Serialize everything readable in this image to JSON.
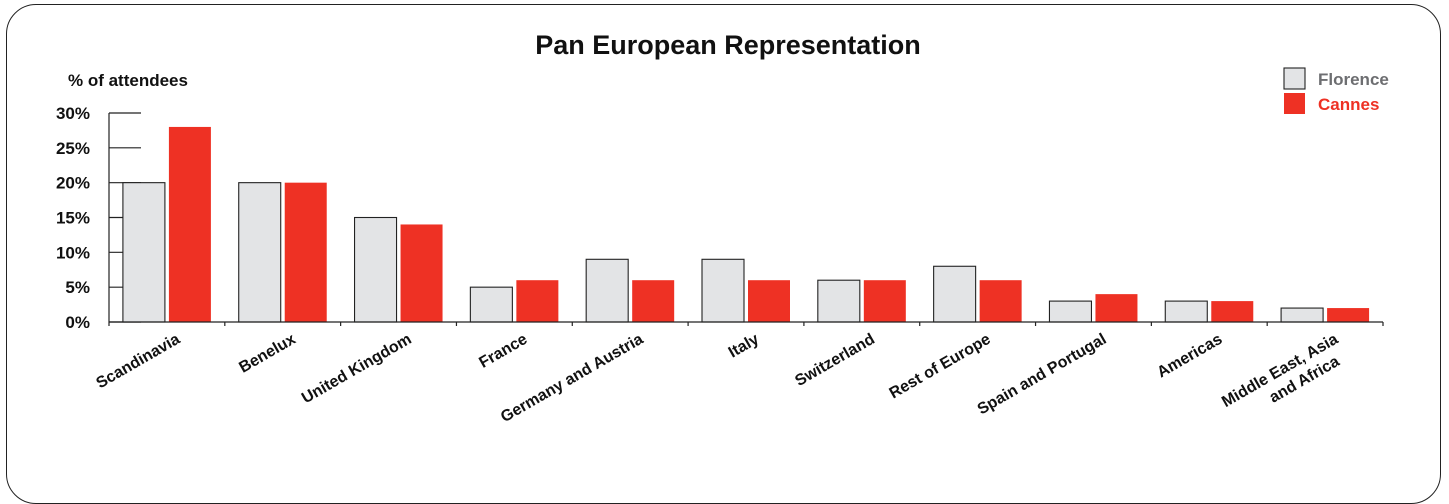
{
  "chart_data": {
    "type": "bar",
    "title": "Pan European Representation",
    "ylabel": "% of attendees",
    "xlabel": "",
    "ylim": [
      0,
      30
    ],
    "yticks": [
      0,
      5,
      10,
      15,
      20,
      25,
      30
    ],
    "ytick_labels": [
      "0%",
      "5%",
      "10%",
      "15%",
      "20%",
      "25%",
      "30%"
    ],
    "grid": false,
    "legend_position": "top-right",
    "categories": [
      "Scandinavia",
      "Benelux",
      "United Kingdom",
      "France",
      "Germany and Austria",
      "Italy",
      "Switzerland",
      "Rest of Europe",
      "Spain and Portugal",
      "Americas",
      "Middle East, Asia\nand Africa"
    ],
    "series": [
      {
        "name": "Florence",
        "color": "#e3e4e6",
        "text_color": "#6d6e71",
        "values": [
          20,
          20,
          15,
          5,
          9,
          9,
          6,
          8,
          3,
          3,
          2
        ]
      },
      {
        "name": "Cannes",
        "color": "#ee3124",
        "text_color": "#ee3124",
        "values": [
          28,
          20,
          14,
          6,
          6,
          6,
          6,
          6,
          4,
          3,
          2
        ]
      }
    ]
  }
}
